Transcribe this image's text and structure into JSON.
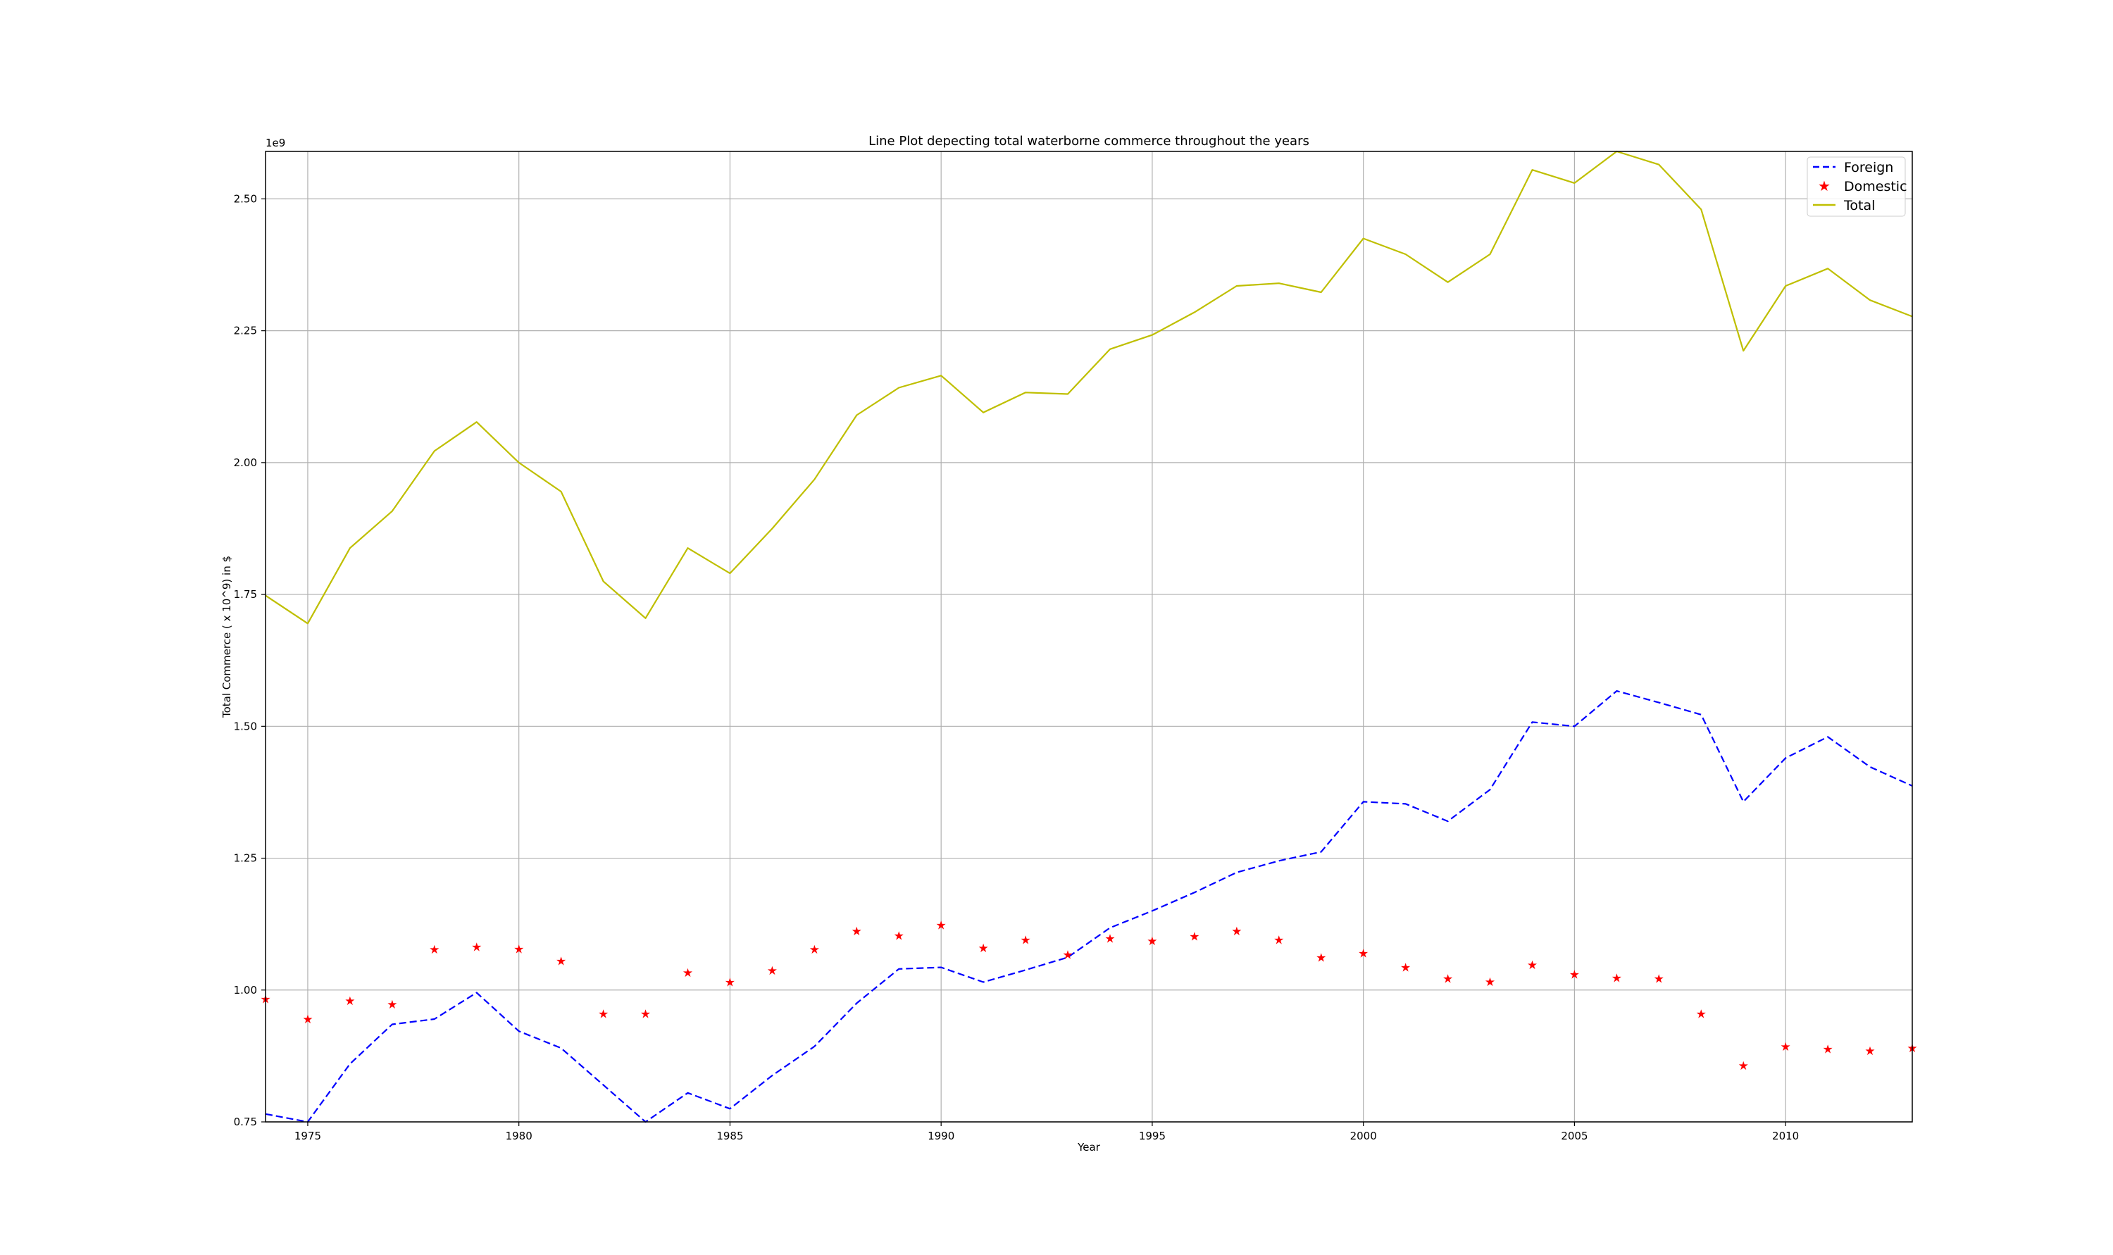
{
  "chart_data": {
    "type": "line",
    "title": "Line Plot depecting total waterborne commerce throughout the years",
    "xlabel": "Year",
    "ylabel": "Total Commerce ( x 10^9) in $",
    "y_offset_label": "1e9",
    "xlim": [
      1974,
      2013
    ],
    "ylim": [
      0.75,
      2.59
    ],
    "grid": true,
    "legend_position": "upper right",
    "xticks": [
      1975,
      1980,
      1985,
      1990,
      1995,
      2000,
      2005,
      2010
    ],
    "xtick_labels": [
      "1975",
      "1980",
      "1985",
      "1990",
      "1995",
      "2000",
      "2005",
      "2010"
    ],
    "yticks": [
      0.75,
      1.0,
      1.25,
      1.5,
      1.75,
      2.0,
      2.25,
      2.5
    ],
    "ytick_labels": [
      "0.75",
      "1.00",
      "1.25",
      "1.50",
      "1.75",
      "2.00",
      "2.25",
      "2.50"
    ],
    "x": [
      1974,
      1975,
      1976,
      1977,
      1978,
      1979,
      1980,
      1981,
      1982,
      1983,
      1984,
      1985,
      1986,
      1987,
      1988,
      1989,
      1990,
      1991,
      1992,
      1993,
      1994,
      1995,
      1996,
      1997,
      1998,
      1999,
      2000,
      2001,
      2002,
      2003,
      2004,
      2005,
      2006,
      2007,
      2008,
      2009,
      2010,
      2011,
      2012,
      2013
    ],
    "series": [
      {
        "name": "Foreign",
        "style": "dashed-line",
        "color": "#0000ff",
        "values": [
          0.765,
          0.75,
          0.86,
          0.935,
          0.945,
          0.995,
          0.922,
          0.89,
          0.82,
          0.75,
          0.805,
          0.775,
          0.838,
          0.893,
          0.975,
          1.04,
          1.043,
          1.015,
          1.038,
          1.062,
          1.118,
          1.15,
          1.185,
          1.223,
          1.245,
          1.262,
          1.357,
          1.353,
          1.32,
          1.38,
          1.508,
          1.5,
          1.567,
          1.545,
          1.522,
          1.357,
          1.44,
          1.48,
          1.423,
          1.387
        ]
      },
      {
        "name": "Domestic",
        "style": "star-markers",
        "color": "#ff0000",
        "values": [
          0.983,
          0.945,
          0.98,
          0.973,
          1.077,
          1.082,
          1.078,
          1.055,
          0.955,
          0.955,
          1.033,
          1.015,
          1.037,
          1.077,
          1.112,
          1.103,
          1.123,
          1.08,
          1.095,
          1.067,
          1.098,
          1.093,
          1.102,
          1.112,
          1.095,
          1.062,
          1.07,
          1.043,
          1.022,
          1.016,
          1.048,
          1.03,
          1.023,
          1.022,
          0.955,
          0.857,
          0.893,
          0.888,
          0.885,
          0.89
        ]
      },
      {
        "name": "Total",
        "style": "solid-line",
        "color": "#bfbf00",
        "values": [
          1.748,
          1.695,
          1.838,
          1.908,
          2.022,
          2.077,
          2.0,
          1.945,
          1.775,
          1.705,
          1.838,
          1.79,
          1.875,
          1.968,
          2.09,
          2.142,
          2.165,
          2.095,
          2.133,
          2.13,
          2.215,
          2.242,
          2.285,
          2.335,
          2.34,
          2.323,
          2.425,
          2.395,
          2.342,
          2.395,
          2.555,
          2.53,
          2.59,
          2.565,
          2.48,
          2.212,
          2.335,
          2.368,
          2.308,
          2.277
        ]
      }
    ]
  }
}
